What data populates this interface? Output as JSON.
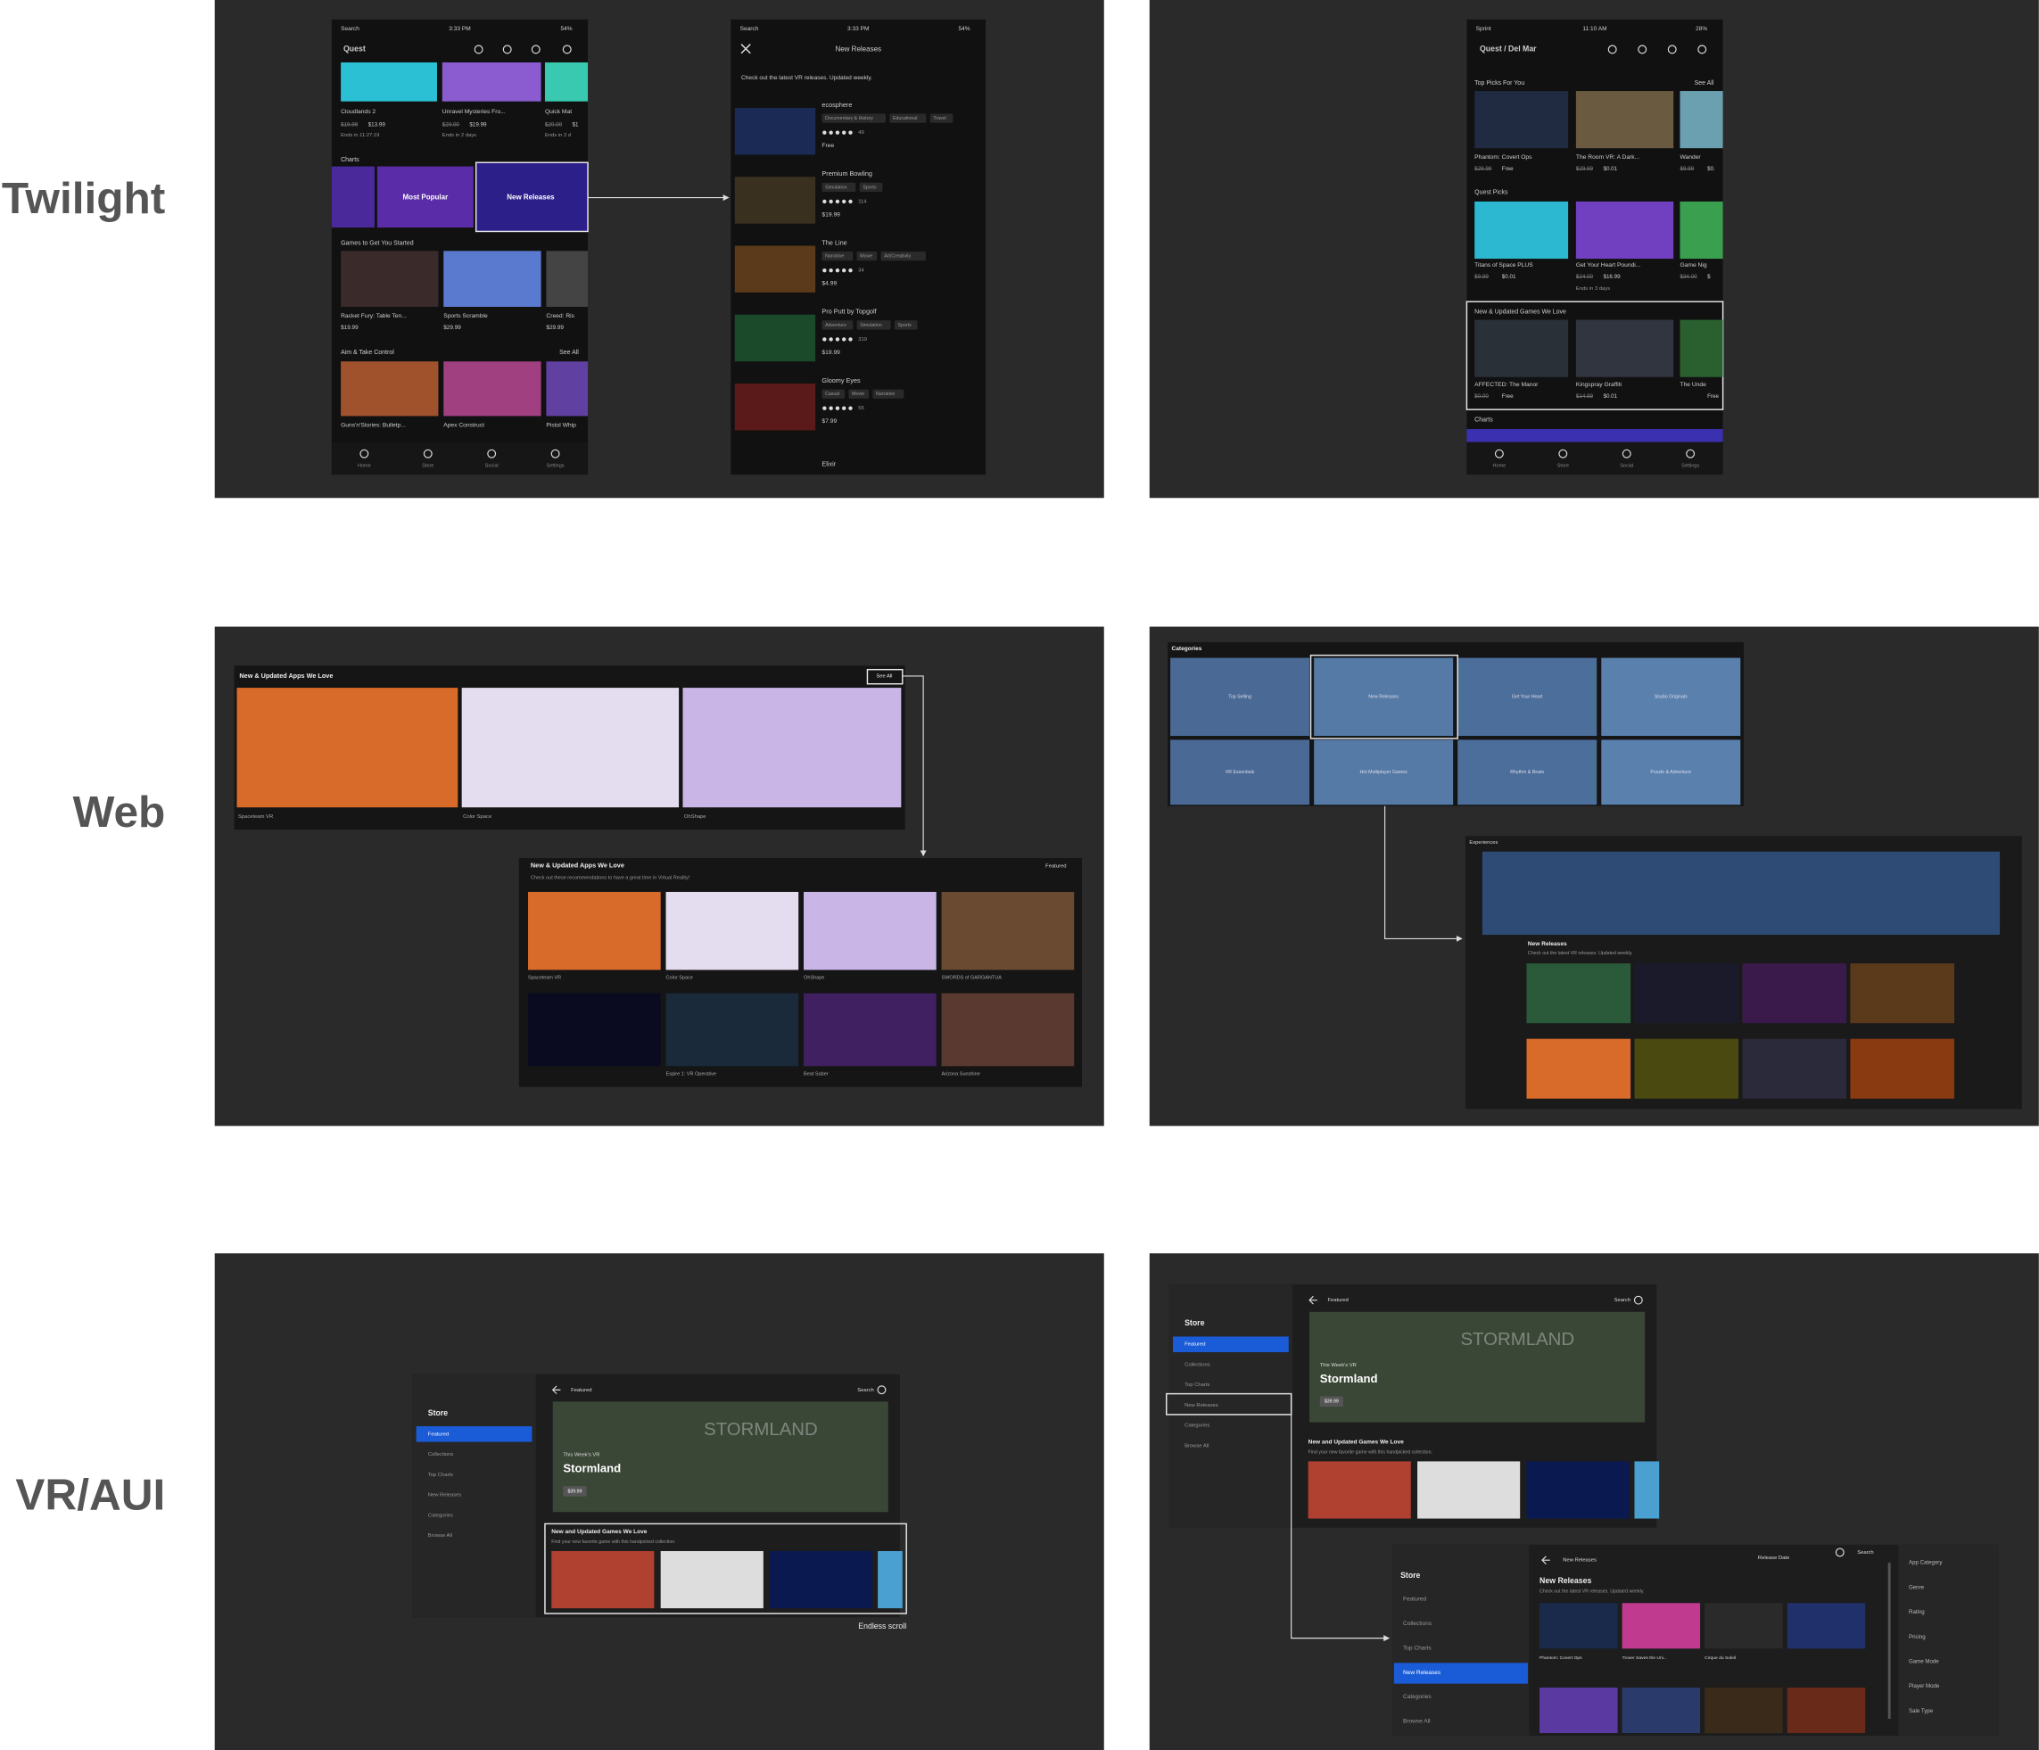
{
  "rows": [
    "Twilight",
    "Web",
    "VR/AUI"
  ],
  "twilight_store": {
    "carrier": "Search",
    "time": "3:33 PM",
    "battery": "54%",
    "header": "Quest",
    "featured": [
      {
        "name": "Cloudlands 2",
        "was": "$19.99",
        "price": "$13.99",
        "note": "Ends in 11:27:19"
      },
      {
        "name": "Unravel Mysteries Fro...",
        "was": "$20.00",
        "price": "$19.99",
        "note": "Ends in 2 days"
      },
      {
        "name": "Quick Mat",
        "was": "$20.00",
        "price": "$1",
        "note": "Ends in 2 d"
      }
    ],
    "charts_title": "Charts",
    "charts": [
      "Most Popular",
      "New Releases"
    ],
    "starter_title": "Games to Get You Started",
    "starter": [
      {
        "name": "Racket Fury: Table Ten...",
        "price": "$19.99"
      },
      {
        "name": "Sports Scramble",
        "price": "$29.99"
      },
      {
        "name": "Creed: Ris",
        "price": "$29.99"
      }
    ],
    "aim_title": "Aim & Take Control",
    "see_all": "See All",
    "aim": [
      "Guns'n'Stories: Bulletp...",
      "Apex Construct",
      "Pistol Whip"
    ],
    "nav": [
      "Home",
      "Store",
      "Social",
      "Settings"
    ]
  },
  "twilight_releases": {
    "carrier": "Search",
    "time": "3:33 PM",
    "battery": "54%",
    "title": "New Releases",
    "intro": "Check out the latest VR releases. Updated weekly.",
    "apps": [
      {
        "name": "ecosphere",
        "tags": [
          "Documentary & History",
          "Educational",
          "Travel"
        ],
        "reviews": "49",
        "price": "Free"
      },
      {
        "name": "Premium Bowling",
        "tags": [
          "Simulation",
          "Sports"
        ],
        "reviews": "114",
        "price": "$19.99"
      },
      {
        "name": "The Line",
        "tags": [
          "Narrative",
          "Movie",
          "Art/Creativity"
        ],
        "reviews": "34",
        "price": "$4.99"
      },
      {
        "name": "Pro Putt by Topgolf",
        "tags": [
          "Adventure",
          "Simulation",
          "Sports"
        ],
        "reviews": "319",
        "price": "$19.99"
      },
      {
        "name": "Gloomy Eyes",
        "tags": [
          "Casual",
          "Movie",
          "Narrative"
        ],
        "reviews": "55",
        "price": "$7.99"
      }
    ],
    "more": "Elixir"
  },
  "twilight_quest": {
    "carrier": "Sprint",
    "time": "11:10 AM",
    "battery": "28%",
    "header": "Quest / Del Mar",
    "top_title": "Top Picks For You",
    "see_all": "See All",
    "top": [
      {
        "name": "Phantom: Covert Ops",
        "was": "$29.99",
        "price": "Free"
      },
      {
        "name": "The Room VR: A Dark...",
        "was": "$29.99",
        "price": "$0.01"
      },
      {
        "name": "Wander",
        "was": "$9.99",
        "price": "$0."
      }
    ],
    "picks_title": "Quest Picks",
    "picks": [
      {
        "name": "Titans of Space PLUS",
        "was": "$9.99",
        "price": "$0.01"
      },
      {
        "name": "Get Your Heart Poundi...",
        "was": "$24.00",
        "price": "$16.99"
      },
      {
        "name": "Game Nig",
        "was": "$34.00",
        "price": "$"
      }
    ],
    "picks_note": "Ends in 3 days",
    "new_title": "New & Updated Games We Love",
    "new": [
      {
        "name": "AFFECTED: The Manor",
        "was": "$0.00",
        "price": "Free"
      },
      {
        "name": "Kingspray Graffiti",
        "was": "$14.99",
        "price": "$0.01"
      },
      {
        "name": "The Unde",
        "was": "",
        "price": "Free"
      }
    ],
    "charts_title": "Charts",
    "nav": [
      "Home",
      "Store",
      "Social",
      "Settings"
    ]
  },
  "web_apps": {
    "title": "New & Updated Apps We Love",
    "see_all": "See All",
    "items": [
      "Spaceteam VR",
      "Color Space",
      "OhShape"
    ],
    "expanded": {
      "title": "New & Updated Apps We Love",
      "intro": "Check out these recommendations to have a great time in Virtual Reality!",
      "sort": "Featured",
      "items": [
        "Spaceteam VR",
        "Color Space",
        "OhShape",
        "SWORDS of GARGANTUA",
        "Espire 1: VR Operative",
        "Beat Saber",
        "Arizona Sunshine"
      ]
    }
  },
  "web_categories": {
    "title": "Categories",
    "tiles": [
      "Top Selling",
      "New Releases",
      "Get Your Heart",
      "Studio Originals",
      "VR Essentials",
      "Hot Multiplayer Games",
      "Rhythm & Beats",
      "Puzzle & Adventure"
    ],
    "experiences": "Experiences",
    "new_title": "New Releases",
    "new_intro": "Check out the latest VR releases. Updated weekly."
  },
  "vr_store": {
    "title": "Store",
    "menu": [
      "Featured",
      "Collections",
      "Top Charts",
      "New Releases",
      "Categories",
      "Browse All"
    ],
    "header": "Featured",
    "search": "Search",
    "hero_kicker": "This Week's VR",
    "hero_title": "Stormland",
    "hero_art": "STORMLAND",
    "hero_price": "$39.99",
    "row_title": "New and Updated Games We Love",
    "row_intro": "Find your new favorite game with this handpicked collection.",
    "annotation": "Endless scroll"
  },
  "vr_releases": {
    "breadcrumb": "New Releases",
    "sort": "Release Date",
    "search": "Search",
    "title": "New Releases",
    "intro": "Check out the latest VR releases. Updated weekly.",
    "items": [
      "Phantom: Covert Ops",
      "Trover Saves the Uni...",
      "Cirque du Soleil"
    ],
    "filters": [
      "App Category",
      "Genre",
      "Rating",
      "Pricing",
      "Game Mode",
      "Player Mode",
      "Sale Type"
    ]
  }
}
